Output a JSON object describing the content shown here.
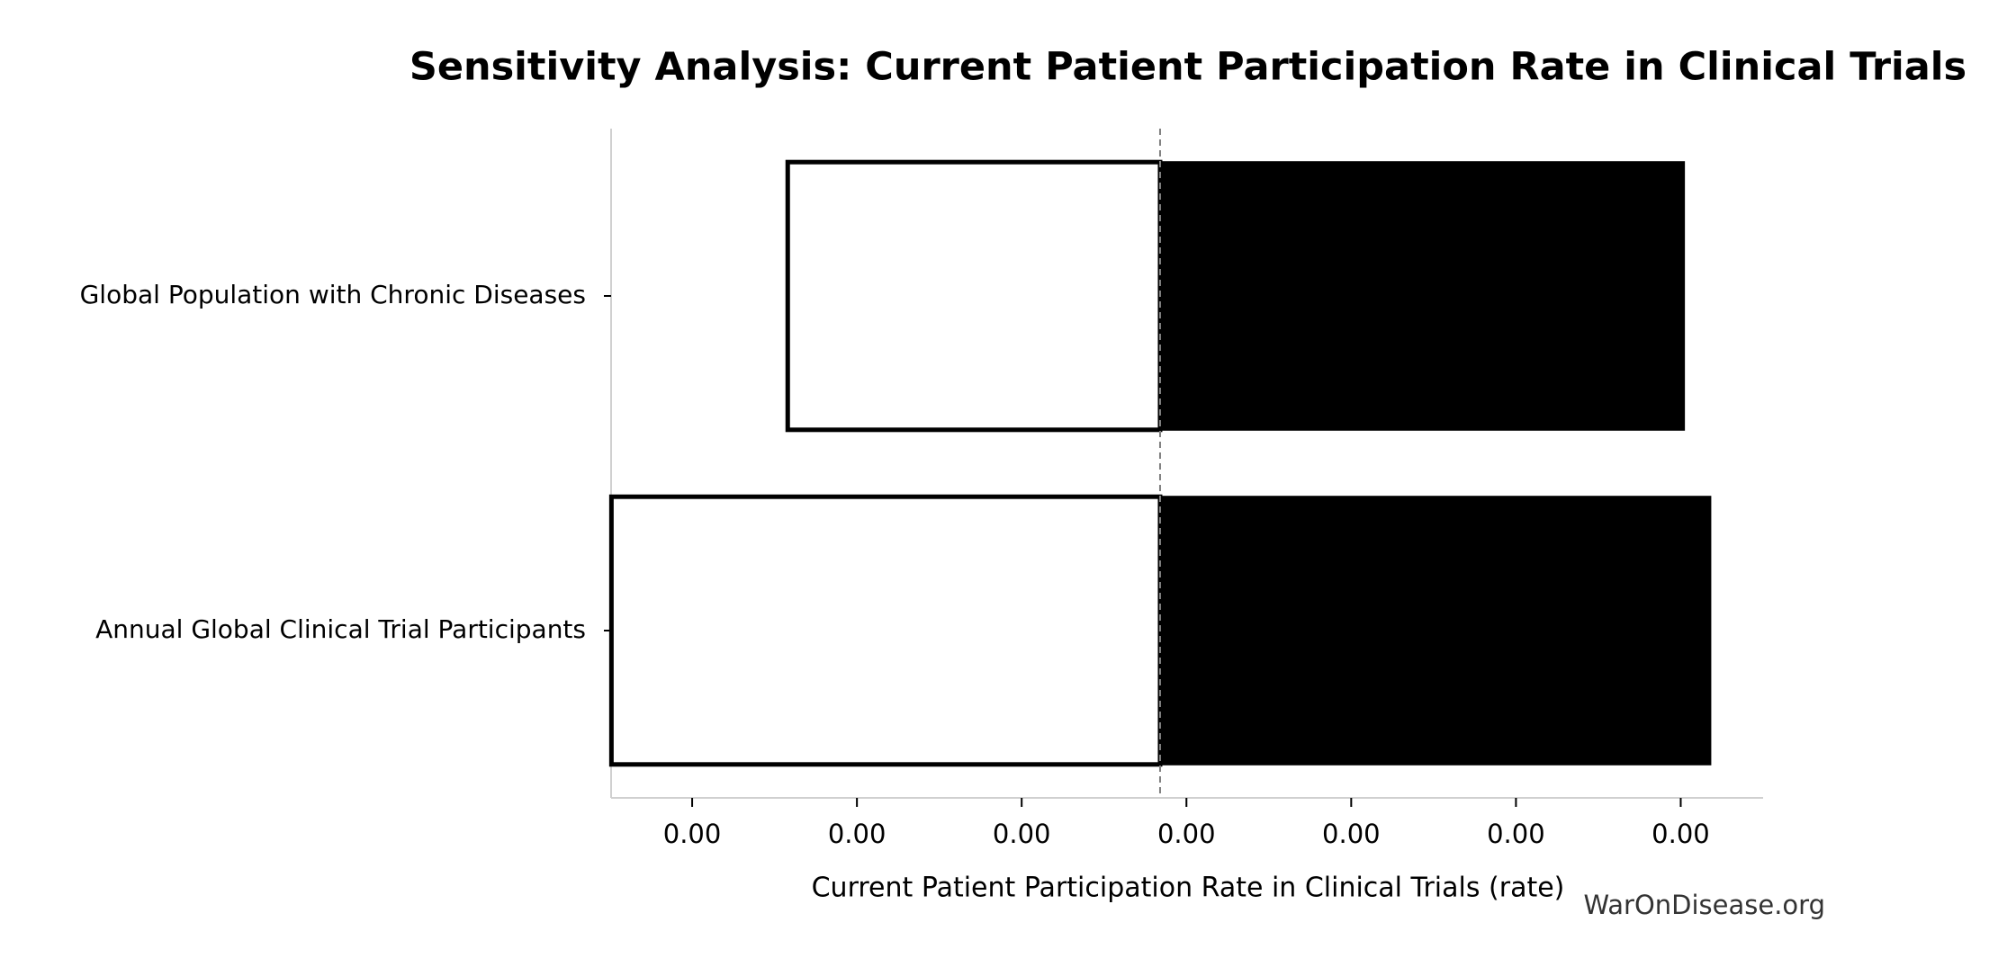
{
  "chart_data": {
    "type": "tornado",
    "title": "Sensitivity Analysis: Current Patient Participation Rate in Clinical Trials",
    "xlabel": "Current Patient Participation Rate in Clinical Trials (rate)",
    "watermark": "WarOnDisease.org",
    "categories": [
      "Global Population with Chronic Diseases",
      "Annual Global Clinical Trial Participants"
    ],
    "baseline": 0.00384,
    "low_values": [
      0.00158,
      0.00051
    ],
    "high_values": [
      0.00702,
      0.00718
    ],
    "low_color": "#ffffff",
    "high_color": "#000000",
    "xlim": [
      0.000508,
      0.0075
    ],
    "xticks": [
      {
        "value": 0.001,
        "label": "0.00"
      },
      {
        "value": 0.002,
        "label": "0.00"
      },
      {
        "value": 0.003,
        "label": "0.00"
      },
      {
        "value": 0.004,
        "label": "0.00"
      },
      {
        "value": 0.005,
        "label": "0.00"
      },
      {
        "value": 0.006,
        "label": "0.00"
      },
      {
        "value": 0.007,
        "label": "0.00"
      }
    ]
  }
}
